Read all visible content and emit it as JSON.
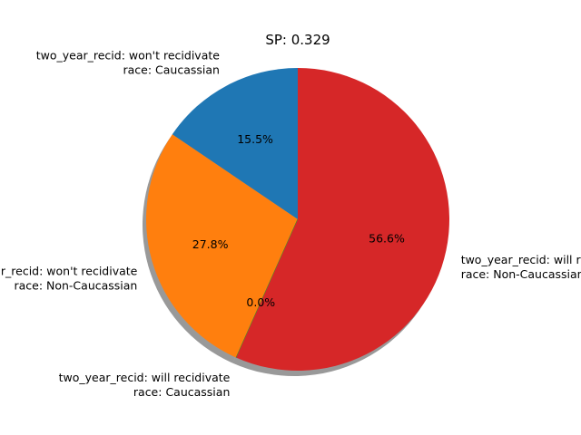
{
  "chart_data": {
    "type": "pie",
    "title": "SP: 0.329",
    "slices": [
      {
        "line1": "two_year_recid: won't recidivate",
        "line2": "race: Caucassian",
        "value": 15.5,
        "pct_label": "15.5%",
        "color": "#1f77b4"
      },
      {
        "line1": "two_year_recid: won't recidivate",
        "line2": "race: Non-Caucassian",
        "value": 27.8,
        "pct_label": "27.8%",
        "color": "#ff7f0e"
      },
      {
        "line1": "two_year_recid: will recidivate",
        "line2": "race: Caucassian",
        "value": 0.0,
        "pct_label": "0.0%",
        "color": "#2ca02c"
      },
      {
        "line1": "two_year_recid: will recidivate",
        "line2": "race: Non-Caucassian",
        "value": 56.6,
        "pct_label": "56.6%",
        "color": "#d62728"
      }
    ],
    "start_angle": 90,
    "direction": "counterclockwise",
    "shadow": true
  }
}
